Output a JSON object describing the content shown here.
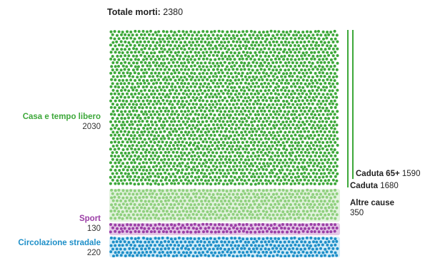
{
  "chart_data": {
    "type": "dot-area",
    "title_label": "Totale morti:",
    "total": 2380,
    "categories": [
      {
        "name": "Casa e tempo libero",
        "value": 2030,
        "color": "#3da83a",
        "bg": "#cde9c6"
      },
      {
        "name": "Sport",
        "value": 130,
        "color": "#9b3ea6",
        "bg": "#e7cdea"
      },
      {
        "name": "Circolazione stradale",
        "value": 220,
        "color": "#1e8fc8",
        "bg": "#b9dff2"
      }
    ],
    "subcategories": [
      {
        "name": "Caduta 65+",
        "value": 1590
      },
      {
        "name": "Caduta",
        "value": 1680
      },
      {
        "name": "Altre cause",
        "value": 350
      }
    ],
    "colors": {
      "home": "#3da83a",
      "home_light": "#8fd07e",
      "sport": "#9b3ea6",
      "road": "#1e8fc8"
    }
  }
}
